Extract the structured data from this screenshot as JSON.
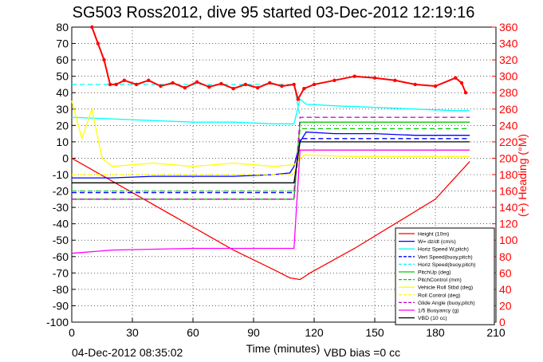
{
  "title": "SG503 Ross2012, dive 95 started 03-Dec-2012 12:19:16",
  "footer": {
    "timestamp": "04-Dec-2012 08:35:02",
    "vbd_bias": "VBD bias =0 cc"
  },
  "chart_data": {
    "type": "line",
    "xlabel": "Time (minutes)",
    "ylabel": "",
    "y2label": "(+) Heading (°M)",
    "xlim": [
      0,
      210
    ],
    "ylim": [
      -100,
      80
    ],
    "y2lim": [
      0,
      360
    ],
    "xticks": [
      0,
      30,
      60,
      90,
      120,
      150,
      180,
      210
    ],
    "yticks": [
      -100,
      -90,
      -80,
      -70,
      -60,
      -50,
      -40,
      -30,
      -20,
      -10,
      0,
      10,
      20,
      30,
      40,
      50,
      60,
      70,
      80
    ],
    "y2ticks": [
      0,
      20,
      40,
      60,
      80,
      100,
      120,
      140,
      160,
      180,
      200,
      220,
      240,
      260,
      280,
      300,
      320,
      340,
      360
    ],
    "grid": true,
    "legend_position": "bottom-right",
    "series": [
      {
        "name": "Height (10m)",
        "color": "#ff0000",
        "style": "solid",
        "x": [
          0,
          20,
          40,
          60,
          80,
          100,
          108,
          113,
          118,
          140,
          160,
          180,
          197
        ],
        "y": [
          0,
          -14,
          -28,
          -42,
          -56,
          -68,
          -73,
          -74,
          -70,
          -55,
          -40,
          -25,
          -2
        ]
      },
      {
        "name": "W= dz/dt (cm/s)",
        "color": "#0000ff",
        "style": "solid",
        "x": [
          0,
          20,
          40,
          60,
          80,
          100,
          108,
          110,
          113,
          116,
          130,
          150,
          170,
          190,
          197
        ],
        "y": [
          -12,
          -12,
          -11,
          -11,
          -11,
          -10,
          -9,
          -5,
          10,
          16,
          15,
          15,
          14,
          14,
          14
        ]
      },
      {
        "name": "Horiz Speed W,pitch)",
        "color": "#00ffff",
        "style": "solid",
        "x": [
          0,
          20,
          40,
          60,
          80,
          100,
          110,
          113,
          116,
          130,
          150,
          170,
          190,
          197
        ],
        "y": [
          25,
          24,
          23,
          22,
          22,
          21,
          21,
          36,
          33,
          32,
          31,
          30,
          29,
          29
        ]
      },
      {
        "name": "Vert Speed(buoy,pitch)",
        "color": "#0000ff",
        "style": "dashed",
        "x": [
          0,
          110,
          113,
          197
        ],
        "y": [
          -21,
          -21,
          12,
          12
        ]
      },
      {
        "name": "Horiz Speed(buoy,pitch)",
        "color": "#00ffff",
        "style": "dashed",
        "x": [
          0,
          110,
          113,
          197
        ],
        "y": [
          45,
          45,
          25,
          25
        ]
      },
      {
        "name": "PitchUp (deg)",
        "color": "#00cc00",
        "style": "solid",
        "x": [
          0,
          110,
          113,
          197
        ],
        "y": [
          -25,
          -25,
          22,
          22
        ]
      },
      {
        "name": "PitchControl (mm)",
        "color": "#00cc00",
        "style": "dashed",
        "x": [
          0,
          110,
          113,
          197
        ],
        "y": [
          -20,
          -20,
          18,
          18
        ]
      },
      {
        "name": "Vehicle Roll Stbd (deg)",
        "color": "#ffff00",
        "style": "solid",
        "x": [
          0,
          5,
          10,
          15,
          20,
          40,
          60,
          80,
          100,
          110,
          115,
          140,
          170,
          197
        ],
        "y": [
          35,
          12,
          30,
          0,
          -5,
          -3,
          -5,
          -3,
          -5,
          -4,
          2,
          1,
          1,
          1
        ]
      },
      {
        "name": "Roll Control (deg)",
        "color": "#ffff00",
        "style": "dashed",
        "x": [
          0,
          110,
          113,
          197
        ],
        "y": [
          -10,
          -10,
          5,
          5
        ]
      },
      {
        "name": "Glide Angle (buoy,pitch)",
        "color": "#cc00cc",
        "style": "dashed",
        "x": [
          0,
          110,
          113,
          197
        ],
        "y": [
          -25,
          -25,
          25,
          25
        ]
      },
      {
        "name": "1/5 Buoyancy (g)",
        "color": "#ff00ff",
        "style": "solid",
        "x": [
          0,
          20,
          60,
          110,
          113,
          197
        ],
        "y": [
          -58,
          -56,
          -55,
          -55,
          5,
          5
        ]
      },
      {
        "name": "VBD (10 cc)",
        "color": "#000000",
        "style": "solid",
        "x": [
          0,
          110,
          113,
          197
        ],
        "y": [
          -15,
          -15,
          10,
          10
        ]
      },
      {
        "name": "Heading",
        "color": "#ff0000",
        "style": "dotted-markers",
        "axis": "right",
        "x": [
          10,
          13,
          16,
          19,
          22,
          26,
          32,
          38,
          44,
          50,
          56,
          62,
          68,
          74,
          80,
          86,
          92,
          98,
          104,
          110,
          112,
          115,
          120,
          130,
          140,
          150,
          160,
          170,
          180,
          190,
          193,
          195
        ],
        "y": [
          360,
          340,
          320,
          290,
          290,
          295,
          290,
          295,
          288,
          292,
          286,
          293,
          287,
          291,
          285,
          290,
          286,
          292,
          288,
          290,
          272,
          285,
          290,
          295,
          300,
          298,
          295,
          290,
          288,
          298,
          292,
          280
        ]
      }
    ]
  }
}
